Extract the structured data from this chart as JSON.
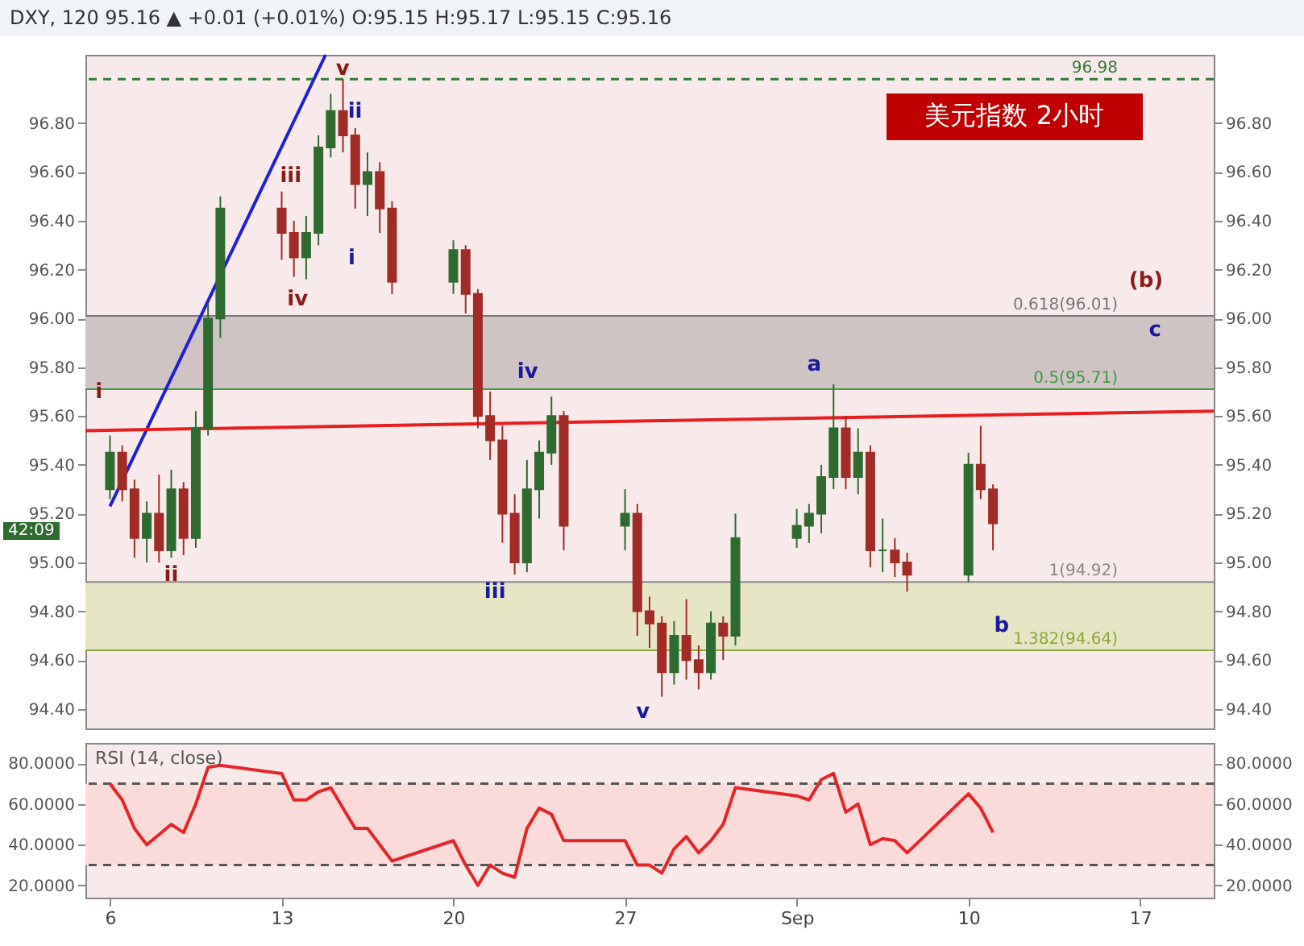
{
  "chart_data": [
    {
      "type": "candlestick",
      "title": "美元指数  2小时",
      "subtitle": "DXY, 120  95.16 ▲ +0.01 (+0.01%)  O:95.15  H:95.17  L:95.15  C:95.16",
      "x": [
        "--08-06T00:00",
        "--08-06T12:00",
        "--08-07T00:00",
        "--08-07T12:00",
        "--08-08T00:00",
        "--08-08T12:00",
        "--08-09T00:00",
        "--08-09T12:00",
        "--08-10T00:00",
        "--08-10T12:00",
        "--08-13T00:00",
        "--08-13T12:00",
        "--08-14T00:00",
        "--08-14T12:00",
        "--08-15T00:00",
        "--08-15T12:00",
        "--08-16T00:00",
        "--08-16T12:00",
        "--08-17T00:00",
        "--08-17T12:00",
        "--08-20T00:00",
        "--08-20T12:00",
        "--08-21T00:00",
        "--08-21T12:00",
        "--08-22T00:00",
        "--08-22T12:00",
        "--08-23T00:00",
        "--08-23T12:00",
        "--08-24T00:00",
        "--08-24T12:00",
        "--08-27T00:00",
        "--08-27T12:00",
        "--08-28T00:00",
        "--08-28T12:00",
        "--08-29T00:00",
        "--08-29T12:00",
        "--08-30T00:00",
        "--08-30T12:00",
        "--08-31T00:00",
        "--08-31T12:00",
        "--09-03T00:00",
        "--09-03T12:00",
        "--09-04T00:00",
        "--09-04T12:00",
        "--09-05T00:00",
        "--09-05T12:00",
        "--09-06T00:00",
        "--09-06T12:00",
        "--09-07T00:00",
        "--09-07T12:00",
        "--09-10T00:00",
        "--09-10T12:00",
        "--09-11T00:00"
      ],
      "ohlc": [
        [
          95.3,
          95.52,
          95.26,
          95.45
        ],
        [
          95.45,
          95.48,
          95.25,
          95.3
        ],
        [
          95.3,
          95.34,
          95.02,
          95.1
        ],
        [
          95.1,
          95.25,
          95.0,
          95.2
        ],
        [
          95.2,
          95.36,
          95.0,
          95.05
        ],
        [
          95.05,
          95.38,
          95.02,
          95.3
        ],
        [
          95.3,
          95.33,
          95.03,
          95.1
        ],
        [
          95.1,
          95.62,
          95.06,
          95.55
        ],
        [
          95.55,
          96.06,
          95.52,
          96.0
        ],
        [
          96.0,
          96.5,
          95.92,
          96.45
        ],
        [
          96.45,
          96.52,
          96.24,
          96.35
        ],
        [
          96.35,
          96.4,
          96.17,
          96.25
        ],
        [
          96.25,
          96.42,
          96.16,
          96.35
        ],
        [
          96.35,
          96.75,
          96.3,
          96.7
        ],
        [
          96.7,
          96.92,
          96.66,
          96.85
        ],
        [
          96.85,
          96.98,
          96.68,
          96.75
        ],
        [
          96.75,
          96.78,
          96.45,
          96.55
        ],
        [
          96.55,
          96.68,
          96.42,
          96.6
        ],
        [
          96.6,
          96.64,
          96.35,
          96.45
        ],
        [
          96.45,
          96.48,
          96.1,
          96.15
        ],
        [
          96.15,
          96.32,
          96.1,
          96.28
        ],
        [
          96.28,
          96.3,
          96.02,
          96.1
        ],
        [
          96.1,
          96.12,
          95.55,
          95.6
        ],
        [
          95.6,
          95.7,
          95.42,
          95.5
        ],
        [
          95.5,
          95.56,
          95.08,
          95.2
        ],
        [
          95.2,
          95.28,
          94.95,
          95.0
        ],
        [
          95.0,
          95.42,
          94.96,
          95.3
        ],
        [
          95.3,
          95.5,
          95.18,
          95.45
        ],
        [
          95.45,
          95.68,
          95.4,
          95.6
        ],
        [
          95.6,
          95.62,
          95.05,
          95.15
        ],
        [
          95.15,
          95.3,
          95.05,
          95.2
        ],
        [
          95.2,
          95.24,
          94.7,
          94.8
        ],
        [
          94.8,
          94.86,
          94.65,
          94.75
        ],
        [
          94.75,
          94.78,
          94.45,
          94.55
        ],
        [
          94.55,
          94.76,
          94.5,
          94.7
        ],
        [
          94.7,
          94.85,
          94.52,
          94.6
        ],
        [
          94.6,
          94.66,
          94.48,
          94.55
        ],
        [
          94.55,
          94.8,
          94.52,
          94.75
        ],
        [
          94.75,
          94.78,
          94.6,
          94.7
        ],
        [
          94.7,
          95.2,
          94.66,
          95.1
        ],
        [
          95.1,
          95.22,
          95.06,
          95.15
        ],
        [
          95.15,
          95.24,
          95.08,
          95.2
        ],
        [
          95.2,
          95.4,
          95.12,
          95.35
        ],
        [
          95.35,
          95.73,
          95.3,
          95.55
        ],
        [
          95.55,
          95.6,
          95.3,
          95.35
        ],
        [
          95.35,
          95.55,
          95.28,
          95.45
        ],
        [
          95.45,
          95.48,
          94.98,
          95.05
        ],
        [
          95.05,
          95.18,
          94.96,
          95.05
        ],
        [
          95.05,
          95.1,
          94.94,
          95.0
        ],
        [
          95.0,
          95.04,
          94.88,
          94.95
        ],
        [
          94.95,
          95.45,
          94.92,
          95.4
        ],
        [
          95.4,
          95.56,
          95.26,
          95.3
        ],
        [
          95.3,
          95.32,
          95.05,
          95.16
        ]
      ],
      "series": [
        {
          "type": "line",
          "color": "#1f1fd6",
          "x": [
            "--08-06T00:00",
            "--08-14T19:00"
          ],
          "values": [
            95.23,
            97.08
          ]
        },
        {
          "type": "line",
          "color": "#e81e1e",
          "x": [
            "--08-05",
            "--09-20"
          ],
          "values": [
            95.54,
            95.62
          ]
        }
      ],
      "xlim": [
        "--08-05",
        "--09-20"
      ],
      "ylim": [
        94.32,
        97.08
      ],
      "yticks": [
        {
          "value": 94.4,
          "label": "94.40"
        },
        {
          "value": 94.6,
          "label": "94.60"
        },
        {
          "value": 94.8,
          "label": "94.80"
        },
        {
          "value": 95,
          "label": "95.00"
        },
        {
          "value": 95.2,
          "label": "95.20"
        },
        {
          "value": 95.4,
          "label": "95.40"
        },
        {
          "value": 95.6,
          "label": "95.60"
        },
        {
          "value": 95.8,
          "label": "95.80"
        },
        {
          "value": 96,
          "label": "96.00"
        },
        {
          "value": 96.2,
          "label": "96.20"
        },
        {
          "value": 96.4,
          "label": "96.40"
        },
        {
          "value": 96.6,
          "label": "96.60"
        },
        {
          "value": 96.8,
          "label": "96.80"
        }
      ],
      "y2lim": [
        94.32,
        97.08
      ],
      "y2ticks": [
        {
          "value": 94.4,
          "label": "94.40"
        },
        {
          "value": 94.6,
          "label": "94.60"
        },
        {
          "value": 94.8,
          "label": "94.80"
        },
        {
          "value": 95,
          "label": "95.00"
        },
        {
          "value": 95.2,
          "label": "95.20"
        },
        {
          "value": 95.4,
          "label": "95.40"
        },
        {
          "value": 95.6,
          "label": "95.60"
        },
        {
          "value": 95.8,
          "label": "95.80"
        },
        {
          "value": 96,
          "label": "96.00"
        },
        {
          "value": 96.2,
          "label": "96.20"
        },
        {
          "value": 96.4,
          "label": "96.40"
        },
        {
          "value": 96.6,
          "label": "96.60"
        },
        {
          "value": 96.8,
          "label": "96.80"
        }
      ],
      "tick_labels": "y",
      "bands": [
        {
          "axis": "y",
          "from": 95.71,
          "to": 96.01,
          "color": "#cfc3c4"
        },
        {
          "axis": "y",
          "from": 94.64,
          "to": 94.92,
          "color": "#e6e6c4"
        }
      ],
      "ref_lines": [
        {
          "axis": "y",
          "value": 96.98,
          "label": "96.98",
          "color": "#2e7d32",
          "line_style": "dashed"
        },
        {
          "axis": "y",
          "value": 96.01,
          "label": "0.618(96.01)",
          "color": "#777777",
          "line_style": "solid"
        },
        {
          "axis": "y",
          "value": 95.71,
          "label": "0.5(95.71)",
          "color": "#3f9a3f",
          "line_style": "solid"
        },
        {
          "axis": "y",
          "value": 94.92,
          "label": "1(94.92)",
          "color": "#888888",
          "line_style": "solid"
        },
        {
          "axis": "y",
          "value": 94.64,
          "label": "1.382(94.64)",
          "color": "#8aa83a",
          "line_style": "solid"
        }
      ],
      "annotations": [
        "42:09",
        "i",
        "ii",
        "iii",
        "iv",
        "v",
        "ii",
        "i",
        "iii",
        "iv",
        "v",
        "a",
        "b",
        "c",
        "(b)"
      ]
    },
    {
      "type": "line",
      "title": "RSI (14, close)",
      "x": [
        "--08-06T00:00",
        "--08-06T12:00",
        "--08-07T00:00",
        "--08-07T12:00",
        "--08-08T00:00",
        "--08-08T12:00",
        "--08-09T00:00",
        "--08-09T12:00",
        "--08-10T00:00",
        "--08-10T12:00",
        "--08-13T00:00",
        "--08-13T12:00",
        "--08-14T00:00",
        "--08-14T12:00",
        "--08-15T00:00",
        "--08-15T12:00",
        "--08-16T00:00",
        "--08-16T12:00",
        "--08-17T00:00",
        "--08-17T12:00",
        "--08-20T00:00",
        "--08-20T12:00",
        "--08-21T00:00",
        "--08-21T12:00",
        "--08-22T00:00",
        "--08-22T12:00",
        "--08-23T00:00",
        "--08-23T12:00",
        "--08-24T00:00",
        "--08-24T12:00",
        "--08-27T00:00",
        "--08-27T12:00",
        "--08-28T00:00",
        "--08-28T12:00",
        "--08-29T00:00",
        "--08-29T12:00",
        "--08-30T00:00",
        "--08-30T12:00",
        "--08-31T00:00",
        "--08-31T12:00",
        "--09-03T00:00",
        "--09-03T12:00",
        "--09-04T00:00",
        "--09-04T12:00",
        "--09-05T00:00",
        "--09-05T12:00",
        "--09-06T00:00",
        "--09-06T12:00",
        "--09-07T00:00",
        "--09-07T12:00",
        "--09-10T00:00",
        "--09-10T12:00",
        "--09-11T00:00"
      ],
      "series": [
        {
          "color": "#e3262a",
          "values": [
            70,
            62,
            48,
            40,
            45,
            50,
            46,
            60,
            78,
            79,
            75,
            62,
            62,
            66,
            68,
            58,
            48,
            48,
            40,
            32,
            42,
            30,
            20,
            30,
            26,
            24,
            48,
            58,
            55,
            42,
            42,
            30,
            30,
            26,
            38,
            44,
            36,
            42,
            50,
            68,
            64,
            62,
            72,
            75,
            56,
            60,
            40,
            43,
            42,
            36,
            65,
            58,
            46
          ]
        }
      ],
      "xlim": [
        "--08-05",
        "--09-20"
      ],
      "xticks": [
        {
          "value": "--08-06",
          "label": "6"
        },
        {
          "value": "--08-13",
          "label": "13"
        },
        {
          "value": "--08-20",
          "label": "20"
        },
        {
          "value": "--08-27",
          "label": "27"
        },
        {
          "value": "--09-03",
          "label": "Sep"
        },
        {
          "value": "--09-10",
          "label": "10"
        },
        {
          "value": "--09-17",
          "label": "17"
        }
      ],
      "ylim": [
        14,
        90
      ],
      "yticks": [
        {
          "value": 20,
          "label": "20.0000"
        },
        {
          "value": 40,
          "label": "40.0000"
        },
        {
          "value": 60,
          "label": "60.0000"
        },
        {
          "value": 80,
          "label": "80.0000"
        }
      ],
      "y2lim": [
        14,
        90
      ],
      "y2ticks": [
        {
          "value": 20,
          "label": "20.0000"
        },
        {
          "value": 40,
          "label": "40.0000"
        },
        {
          "value": 60,
          "label": "60.0000"
        },
        {
          "value": 80,
          "label": "80.0000"
        }
      ],
      "bands": [
        {
          "axis": "y",
          "from": 30,
          "to": 70,
          "color": "#fbdada"
        }
      ],
      "ref_lines": [
        {
          "axis": "y",
          "value": 70,
          "color": "#555555",
          "line_style": "dashed"
        },
        {
          "axis": "y",
          "value": 30,
          "color": "#555555",
          "line_style": "dashed"
        }
      ]
    }
  ]
}
